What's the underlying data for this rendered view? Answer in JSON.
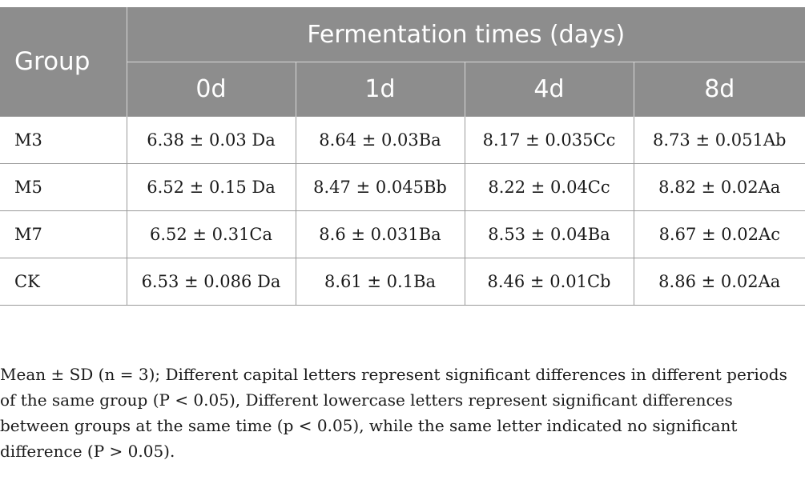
{
  "table": {
    "group_header": "Group",
    "span_header": "Fermentation times (days)",
    "day_headers": [
      "0d",
      "1d",
      "4d",
      "8d"
    ],
    "rows": [
      {
        "group": "M3",
        "values": [
          "6.38 ± 0.03 Da",
          "8.64 ± 0.03Ba",
          "8.17 ± 0.035Cc",
          "8.73 ± 0.051Ab"
        ]
      },
      {
        "group": "M5",
        "values": [
          "6.52 ± 0.15 Da",
          "8.47 ± 0.045Bb",
          "8.22 ± 0.04Cc",
          "8.82 ± 0.02Aa"
        ]
      },
      {
        "group": "M7",
        "values": [
          "6.52 ± 0.31Ca",
          "8.6 ± 0.031Ba",
          "8.53 ± 0.04Ba",
          "8.67 ± 0.02Ac"
        ]
      },
      {
        "group": "CK",
        "values": [
          "6.53 ± 0.086 Da",
          "8.61 ± 0.1Ba",
          "8.46 ± 0.01Cb",
          "8.86 ± 0.02Aa"
        ]
      }
    ]
  },
  "footnote": "Mean ± SD (n = 3); Different capital letters represent significant differences in different periods of the same group (P < 0.05), Different lowercase letters represent significant differences between groups at the same time (p < 0.05), while the same letter indicated no significant difference (P > 0.05)."
}
